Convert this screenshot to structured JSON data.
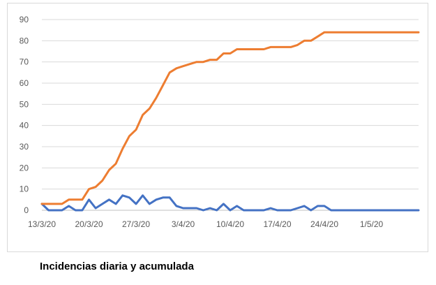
{
  "caption": "Incidencias diaria y acumulada",
  "chart_data": {
    "type": "line",
    "title": "",
    "xlabel": "",
    "ylabel": "",
    "ylim": [
      0,
      90
    ],
    "yticks": [
      0,
      10,
      20,
      30,
      40,
      50,
      60,
      70,
      80,
      90
    ],
    "grid": true,
    "legend": "none",
    "x": [
      "13/3/20",
      "14/3/20",
      "15/3/20",
      "16/3/20",
      "17/3/20",
      "18/3/20",
      "19/3/20",
      "20/3/20",
      "21/3/20",
      "22/3/20",
      "23/3/20",
      "24/3/20",
      "25/3/20",
      "26/3/20",
      "27/3/20",
      "28/3/20",
      "29/3/20",
      "30/3/20",
      "31/3/20",
      "1/4/20",
      "2/4/20",
      "3/4/20",
      "4/4/20",
      "5/4/20",
      "6/4/20",
      "7/4/20",
      "8/4/20",
      "9/4/20",
      "10/4/20",
      "11/4/20",
      "12/4/20",
      "13/4/20",
      "14/4/20",
      "15/4/20",
      "16/4/20",
      "17/4/20",
      "18/4/20",
      "19/4/20",
      "20/4/20",
      "21/4/20",
      "22/4/20",
      "23/4/20",
      "24/4/20",
      "25/4/20",
      "26/4/20",
      "27/4/20",
      "28/4/20",
      "29/4/20",
      "30/4/20",
      "1/5/20",
      "2/5/20",
      "3/5/20",
      "4/5/20",
      "5/5/20",
      "6/5/20",
      "7/5/20",
      "8/5/20"
    ],
    "xtick_labels": [
      "13/3/20",
      "20/3/20",
      "27/3/20",
      "3/4/20",
      "10/4/20",
      "17/4/20",
      "24/4/20",
      "1/5/20"
    ],
    "series": [
      {
        "color": "#4472c4",
        "values": [
          3,
          0,
          0,
          0,
          2,
          0,
          0,
          5,
          1,
          3,
          5,
          3,
          7,
          6,
          3,
          7,
          3,
          5,
          6,
          6,
          2,
          1,
          1,
          1,
          0,
          1,
          0,
          3,
          0,
          2,
          0,
          0,
          0,
          0,
          1,
          0,
          0,
          0,
          1,
          2,
          0,
          2,
          2,
          0,
          0,
          0,
          0,
          0,
          0,
          0,
          0,
          0,
          0,
          0,
          0,
          0,
          0
        ]
      },
      {
        "color": "#ed7d31",
        "values": [
          3,
          3,
          3,
          3,
          5,
          5,
          5,
          10,
          11,
          14,
          19,
          22,
          29,
          35,
          38,
          45,
          48,
          53,
          59,
          65,
          67,
          68,
          69,
          70,
          70,
          71,
          71,
          74,
          74,
          76,
          76,
          76,
          76,
          76,
          77,
          77,
          77,
          77,
          78,
          80,
          80,
          82,
          84,
          84,
          84,
          84,
          84,
          84,
          84,
          84,
          84,
          84,
          84,
          84,
          84,
          84,
          84
        ]
      }
    ]
  }
}
